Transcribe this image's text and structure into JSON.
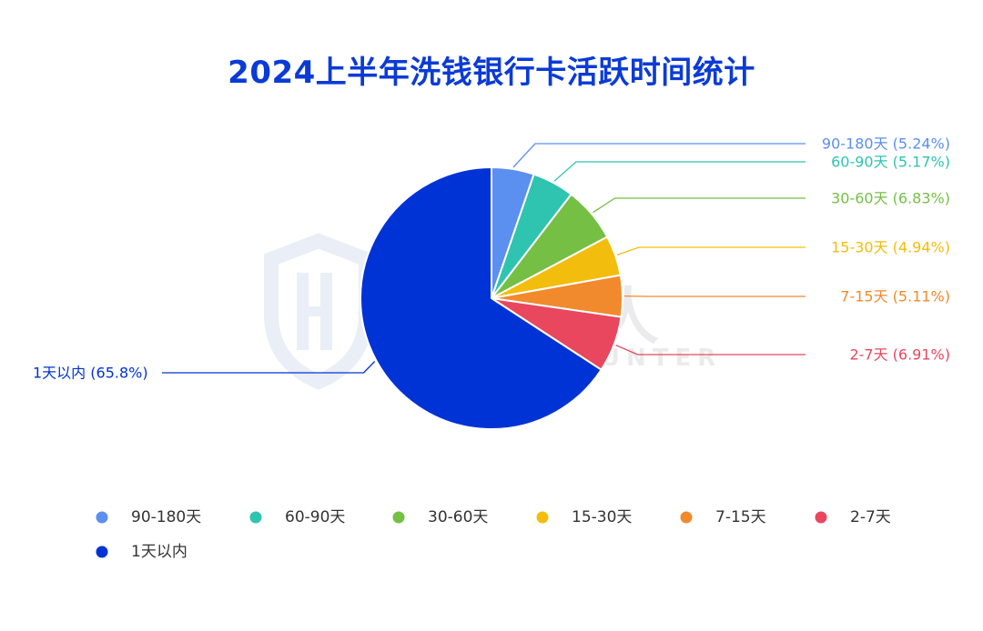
{
  "chart_data": {
    "type": "pie",
    "title": "2024上半年洗钱银行卡活跃时间统计",
    "start_angle_deg": 90,
    "direction": "clockwise",
    "slices": [
      {
        "label": "90-180天",
        "value": 5.24,
        "display": "5.24%",
        "color": "#5b8ff0"
      },
      {
        "label": "60-90天",
        "value": 5.17,
        "display": "5.17%",
        "color": "#2ec4b0"
      },
      {
        "label": "30-60天",
        "value": 6.83,
        "display": "6.83%",
        "color": "#74bf44"
      },
      {
        "label": "15-30天",
        "value": 4.94,
        "display": "4.94%",
        "color": "#f2bd0c"
      },
      {
        "label": "7-15天",
        "value": 5.11,
        "display": "5.11%",
        "color": "#f08a2c"
      },
      {
        "label": "2-7天",
        "value": 6.91,
        "display": "6.91%",
        "color": "#e8475e"
      },
      {
        "label": "1天以内",
        "value": 65.8,
        "display": "65.8%",
        "color": "#0033d6"
      }
    ],
    "legend": {
      "placement": "bottom-left",
      "items": [
        "90-180天",
        "60-90天",
        "30-60天",
        "15-30天",
        "7-15天",
        "2-7天",
        "1天以内"
      ]
    }
  },
  "watermark": {
    "text_cn": "威胁猎人",
    "text_en": "THREAT HUNTER",
    "logo_icon": "shield-logo-icon"
  }
}
